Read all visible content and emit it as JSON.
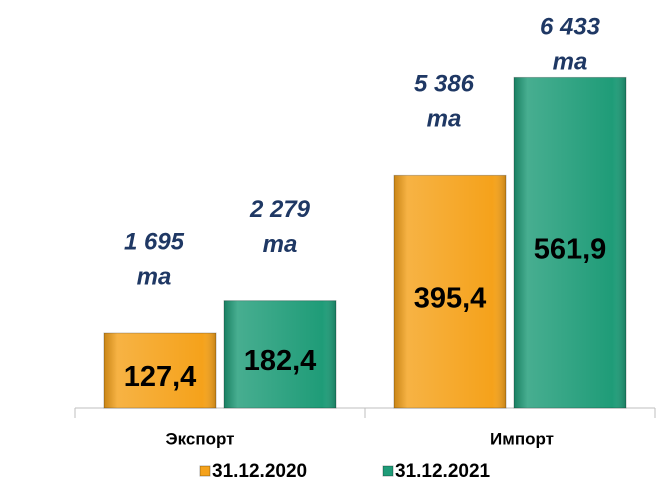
{
  "chart_data": {
    "type": "bar",
    "categories": [
      "Экспорт",
      "Импорт"
    ],
    "series": [
      {
        "name": "31.12.2020",
        "color": "#f5a21b",
        "values": [
          127.4,
          395.4
        ],
        "value_labels": [
          "127,4",
          "395,4"
        ],
        "annotations": [
          [
            "1 695",
            "та"
          ],
          [
            "5 386",
            "та"
          ]
        ]
      },
      {
        "name": "31.12.2021",
        "color": "#1f9c78",
        "values": [
          182.4,
          561.9
        ],
        "value_labels": [
          "182,4",
          "561,9"
        ],
        "annotations": [
          [
            "2 279",
            "та"
          ],
          [
            "6 433",
            "та"
          ]
        ]
      }
    ],
    "ylim": [
      0,
      600
    ],
    "legend": "bottom"
  }
}
